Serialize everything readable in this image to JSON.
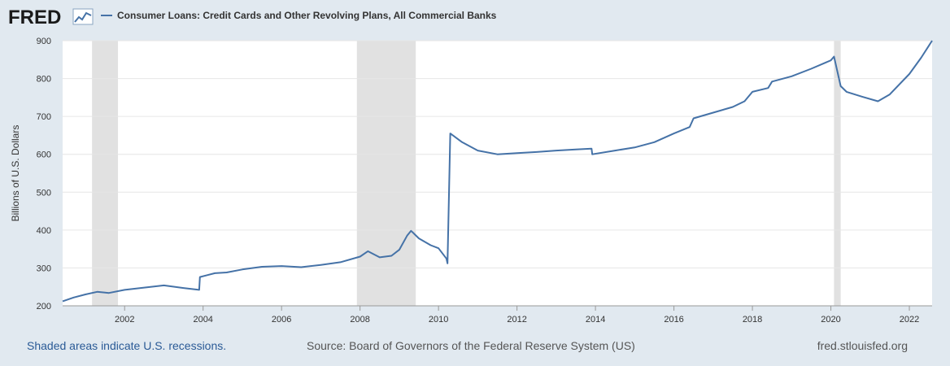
{
  "brand": {
    "logo_text": "FRED"
  },
  "colors": {
    "background": "#e1e9f0",
    "plot_background": "#ffffff",
    "series": "#4572a7",
    "recession": "#e1e1e1",
    "grid": "#e6e6e6"
  },
  "footer": {
    "recession_note": "Shaded areas indicate U.S. recessions.",
    "source": "Source: Board of Governors of the Federal Reserve System (US)",
    "site": "fred.stlouisfed.org"
  },
  "chart_data": {
    "type": "line",
    "title": "Consumer Loans: Credit Cards and Other Revolving Plans, All Commercial Banks",
    "ylabel": "Billions of U.S. Dollars",
    "xlabel": "",
    "xlim": [
      2000.42,
      2022.58
    ],
    "ylim": [
      200,
      900
    ],
    "x_ticks": [
      2002,
      2004,
      2006,
      2008,
      2010,
      2012,
      2014,
      2016,
      2018,
      2020,
      2022
    ],
    "y_ticks": [
      200,
      300,
      400,
      500,
      600,
      700,
      800,
      900
    ],
    "grid": true,
    "legend": "top-left",
    "recessions": [
      [
        2001.17,
        2001.83
      ],
      [
        2007.92,
        2009.42
      ],
      [
        2020.08,
        2020.25
      ]
    ],
    "series": [
      {
        "name": "Consumer Loans: Credit Cards and Other Revolving Plans, All Commercial Banks",
        "x": [
          2000.42,
          2000.7,
          2001.0,
          2001.3,
          2001.6,
          2002.0,
          2002.5,
          2003.0,
          2003.5,
          2003.9,
          2003.92,
          2004.3,
          2004.6,
          2005.0,
          2005.5,
          2006.0,
          2006.5,
          2007.0,
          2007.5,
          2008.0,
          2008.2,
          2008.5,
          2008.8,
          2009.0,
          2009.2,
          2009.3,
          2009.5,
          2009.8,
          2010.0,
          2010.2,
          2010.23,
          2010.3,
          2010.6,
          2011.0,
          2011.5,
          2012.0,
          2012.5,
          2013.0,
          2013.5,
          2013.9,
          2013.92,
          2014.5,
          2015.0,
          2015.5,
          2016.0,
          2016.4,
          2016.5,
          2017.0,
          2017.5,
          2017.8,
          2018.0,
          2018.4,
          2018.5,
          2019.0,
          2019.5,
          2020.0,
          2020.08,
          2020.25,
          2020.4,
          2020.8,
          2021.2,
          2021.5,
          2022.0,
          2022.3,
          2022.58
        ],
        "y": [
          212,
          222,
          230,
          237,
          234,
          242,
          248,
          254,
          247,
          242,
          276,
          286,
          288,
          296,
          303,
          305,
          302,
          308,
          315,
          330,
          344,
          328,
          332,
          348,
          385,
          398,
          378,
          360,
          352,
          325,
          312,
          655,
          632,
          610,
          600,
          603,
          606,
          610,
          613,
          615,
          600,
          610,
          618,
          632,
          655,
          672,
          695,
          710,
          725,
          740,
          765,
          775,
          792,
          806,
          826,
          848,
          858,
          780,
          765,
          752,
          740,
          758,
          812,
          855,
          900
        ]
      }
    ]
  }
}
